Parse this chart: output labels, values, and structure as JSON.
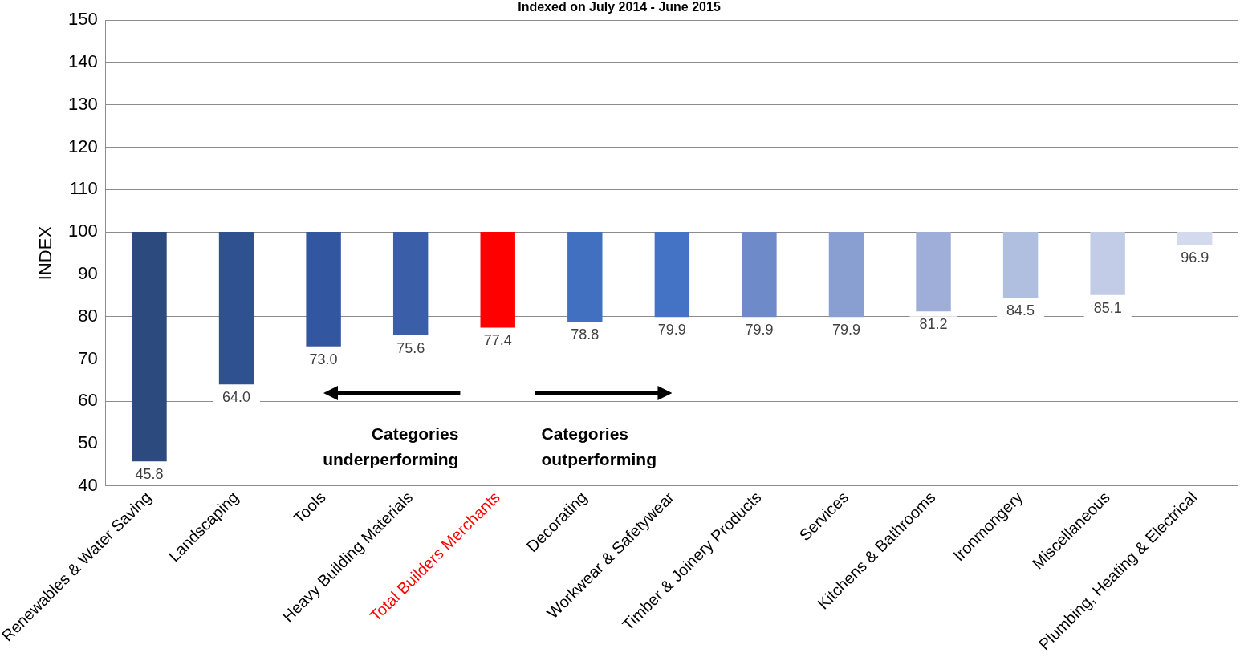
{
  "chart_data": {
    "type": "bar",
    "title": "Indexed on July 2014 - June 2015",
    "ylabel": "INDEX",
    "categories": [
      "Renewables & Water Saving",
      "Landscaping",
      "Tools",
      "Heavy Building Materials",
      "Total Builders Merchants",
      "Decorating",
      "Workwear & Safetywear",
      "Timber & Joinery Products",
      "Services",
      "Kitchens & Bathrooms",
      "Ironmongery",
      "Miscellaneous",
      "Plumbing, Heating & Electrical"
    ],
    "base": [
      100,
      100,
      100,
      100,
      100,
      100,
      100,
      100,
      100,
      100,
      100,
      100,
      100
    ],
    "values": [
      -54.2,
      -36.0,
      -27.0,
      -24.4,
      -22.6,
      -21.2,
      -20.1,
      -20.1,
      -20.1,
      -18.8,
      -15.5,
      -14.9,
      -3.1
    ],
    "value_labels": [
      "45.8",
      "64.0",
      "73.0",
      "75.6",
      "77.4",
      "78.8",
      "79.9",
      "79.9",
      "79.9",
      "81.2",
      "84.5",
      "85.1",
      "96.9"
    ],
    "colors": [
      "#2c4a7e",
      "#2f5190",
      "#3356a0",
      "#3a5fa8",
      "#ff0000",
      "#4170c0",
      "#4472c4",
      "#6f8ac8",
      "#8a9fd1",
      "#9eaed8",
      "#b0bee0",
      "#c2cce7",
      "#d3daee"
    ],
    "ylim": [
      40,
      150
    ],
    "yticks": [
      40,
      50,
      60,
      70,
      80,
      90,
      100,
      110,
      120,
      130,
      140,
      150
    ],
    "grid": "y",
    "legend": false,
    "annotations": [
      "Categories underperforming",
      "Categories outperforming"
    ]
  }
}
